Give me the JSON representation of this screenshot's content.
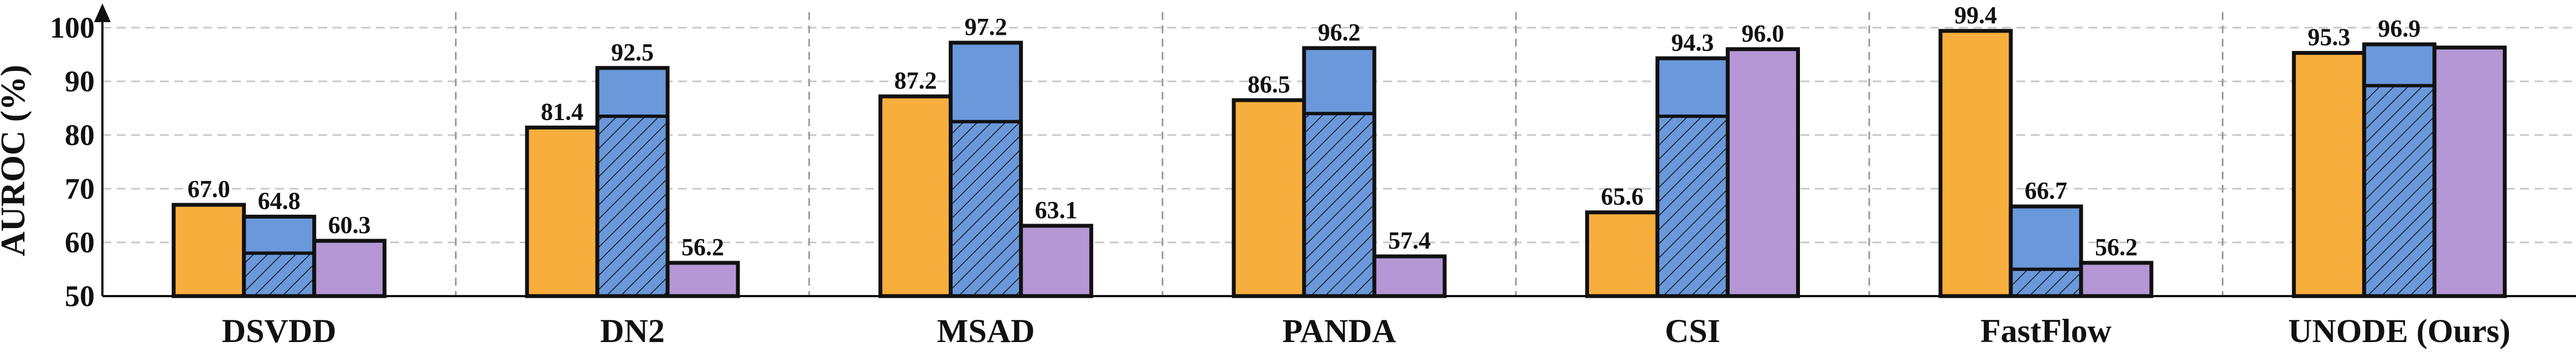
{
  "chart_data": {
    "type": "bar",
    "ylabel": "AUROC (%)",
    "ylim": [
      50,
      100
    ],
    "yticks": [
      "50",
      "60",
      "70",
      "80",
      "90",
      "100"
    ],
    "grid": true,
    "categories": [
      "DSVDD",
      "DN2",
      "MSAD",
      "PANDA",
      "CSI",
      "FastFlow",
      "UNODE (Ours)"
    ],
    "series": [
      {
        "color": "#F8AE3C",
        "values": [
          67.0,
          81.4,
          87.2,
          86.5,
          65.6,
          99.4,
          95.3
        ],
        "labels": [
          "67.0",
          "81.4",
          "87.2",
          "86.5",
          "65.6",
          "99.4",
          "95.3"
        ]
      },
      {
        "color": "#6A98DB",
        "values": [
          64.8,
          92.5,
          97.2,
          96.2,
          94.3,
          66.7,
          96.9
        ],
        "labels": [
          "64.8",
          "92.5",
          "97.2",
          "96.2",
          "94.3",
          "66.7",
          "96.9"
        ],
        "hatched_values": [
          58.0,
          83.5,
          82.5,
          84.0,
          83.5,
          55.0,
          89.2
        ]
      },
      {
        "color": "#B497D4",
        "values": [
          60.3,
          56.2,
          63.1,
          57.4,
          96.0,
          56.2,
          96.3
        ],
        "labels": [
          "60.3",
          "56.2",
          "63.1",
          "57.4",
          "96.0",
          "56.2",
          ""
        ]
      }
    ]
  }
}
